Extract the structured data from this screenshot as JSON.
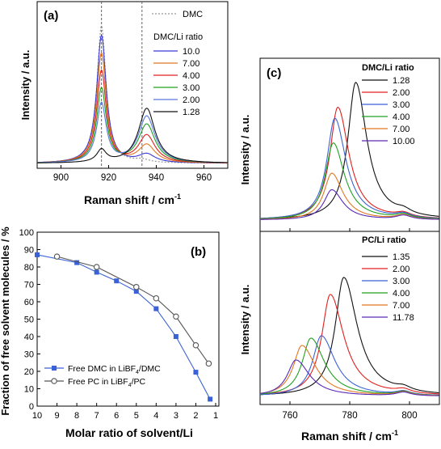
{
  "chart_data": [
    {
      "panel": "(a)",
      "type": "line",
      "xlabel": "Raman shift / cm",
      "xlabel_sup": "-1",
      "ylabel": "Intensity / a.u.",
      "xlim": [
        890,
        970
      ],
      "xticks": [
        900,
        920,
        940,
        960
      ],
      "reference_series": {
        "name": "DMC",
        "style": "dotted",
        "color": "#999999"
      },
      "legend_title": "DMC/Li ratio",
      "legend_position": "right",
      "vertical_lines": [
        917,
        934
      ],
      "series": [
        {
          "name": "10.0",
          "color": "#3a3ad6",
          "peak1": 0.93,
          "peak2": 0.06
        },
        {
          "name": "7.00",
          "color": "#e07820",
          "peak1": 0.8,
          "peak2": 0.13
        },
        {
          "name": "4.00",
          "color": "#e02020",
          "peak1": 0.67,
          "peak2": 0.2
        },
        {
          "name": "3.00",
          "color": "#20a020",
          "peak1": 0.54,
          "peak2": 0.28
        },
        {
          "name": "2.00",
          "color": "#5a78e0",
          "peak1": 0.43,
          "peak2": 0.34
        },
        {
          "name": "1.28",
          "color": "#111111",
          "peak1": 0.09,
          "peak2": 0.4
        }
      ]
    },
    {
      "panel": "(b)",
      "type": "line",
      "xlabel": "Molar ratio of solvent/Li",
      "ylabel": "Fraction of free solvent molecules / %",
      "xlim": [
        10,
        1
      ],
      "ylim": [
        0,
        100
      ],
      "xticks": [
        10,
        9,
        8,
        7,
        6,
        5,
        4,
        3,
        2,
        1
      ],
      "yticks": [
        0,
        10,
        20,
        30,
        40,
        50,
        60,
        70,
        80,
        90,
        100
      ],
      "legend_position": "bottom-left",
      "series": [
        {
          "name": "Free DMC in LiBF4/DMC",
          "label_pre": "Free DMC in LiBF",
          "label_sub": "4",
          "label_post": "/DMC",
          "marker": "filled-square",
          "color": "#3a62d6",
          "x": [
            10,
            8,
            7,
            6,
            5,
            4,
            3,
            2,
            1.28
          ],
          "y": [
            87,
            82.5,
            77,
            72,
            66,
            56,
            40,
            19.5,
            4
          ]
        },
        {
          "name": "Free PC in LiBF4/PC",
          "label_pre": "Free PC in LiBF",
          "label_sub": "4",
          "label_post": "/PC",
          "marker": "open-circle",
          "color": "#555555",
          "x": [
            9,
            7,
            5,
            4,
            3,
            2,
            1.35
          ],
          "y": [
            86,
            80,
            68.5,
            62,
            51.5,
            35,
            24.5
          ]
        }
      ]
    },
    {
      "panel": "(c)",
      "type": "line",
      "xlabel": "Raman shift / cm",
      "xlabel_sup": "-1",
      "ylabel_top": "Intensity / a.u.",
      "ylabel_bottom": "Intensity / a.u.",
      "xlim": [
        750,
        810
      ],
      "xticks": [
        760,
        780,
        800
      ],
      "top": {
        "legend_title": "DMC/Li ratio",
        "series": [
          {
            "name": "1.28",
            "color": "#111111",
            "peak_x": 782,
            "height": 1.0
          },
          {
            "name": "2.00",
            "color": "#e02020",
            "peak_x": 776,
            "height": 0.82
          },
          {
            "name": "3.00",
            "color": "#3a62d6",
            "peak_x": 775,
            "height": 0.74
          },
          {
            "name": "4.00",
            "color": "#20a020",
            "peak_x": 774.5,
            "height": 0.56
          },
          {
            "name": "7.00",
            "color": "#e07820",
            "peak_x": 774,
            "height": 0.34
          },
          {
            "name": "10.00",
            "color": "#5a2ab8",
            "peak_x": 774,
            "height": 0.22
          }
        ]
      },
      "bottom": {
        "legend_title": "PC/Li ratio",
        "series": [
          {
            "name": "1.35",
            "color": "#111111",
            "peak_x": 778,
            "height": 0.98
          },
          {
            "name": "2.00",
            "color": "#e02020",
            "peak_x": 773.5,
            "height": 0.84
          },
          {
            "name": "3.00",
            "color": "#3a62d6",
            "peak_x": 770.5,
            "height": 0.5
          },
          {
            "name": "4.00",
            "color": "#20a020",
            "peak_x": 767,
            "height": 0.48
          },
          {
            "name": "7.00",
            "color": "#e07820",
            "peak_x": 764,
            "height": 0.42
          },
          {
            "name": "11.78",
            "color": "#5a2ab8",
            "peak_x": 762,
            "height": 0.3
          }
        ]
      }
    }
  ]
}
